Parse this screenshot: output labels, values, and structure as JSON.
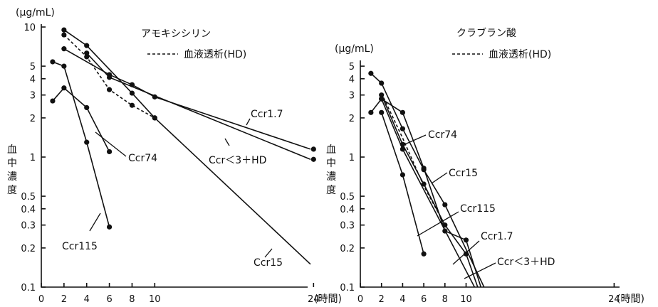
{
  "chart_data": [
    {
      "type": "line",
      "title": "アモキシシリン",
      "unit_label": "(μg/mL)",
      "ylabel_chars": [
        "血",
        "中",
        "濃",
        "度"
      ],
      "x_unit_label": "(時間)",
      "legend": [
        "血液透析(HD)"
      ],
      "y_scale": "log",
      "ylim": [
        0.1,
        10
      ],
      "xlim": [
        0,
        24
      ],
      "x_ticks": [
        0,
        2,
        4,
        6,
        8,
        10,
        24
      ],
      "y_ticks": [
        0.1,
        0.2,
        0.3,
        0.4,
        0.5,
        1,
        2,
        3,
        4,
        5,
        10
      ],
      "y_tick_labels": [
        "0.1",
        "0.2",
        "0.3",
        "0.4",
        "0.5",
        "1",
        "2",
        "3",
        "4",
        "5",
        "10"
      ],
      "series": [
        {
          "name": "Ccr1.7",
          "style": "solid",
          "x": [
            2,
            6,
            8,
            10,
            24
          ],
          "y": [
            6.8,
            4.3,
            3.6,
            2.9,
            1.15
          ],
          "markers": true
        },
        {
          "name": "Ccr＜3＋HD",
          "style": "solid",
          "x": [
            4,
            6,
            24
          ],
          "y": [
            6.3,
            4.1,
            0.96
          ],
          "markers": true
        },
        {
          "name": "Ccr15",
          "style": "solid",
          "x": [
            2,
            4,
            8,
            10,
            26.2
          ],
          "y": [
            9.5,
            7.2,
            3.1,
            2.0,
            0.15
          ],
          "markers_x": [
            2,
            4,
            8,
            10
          ]
        },
        {
          "name": "HD",
          "style": "dashed",
          "x": [
            2,
            4,
            6,
            8,
            10
          ],
          "y": [
            8.7,
            5.9,
            3.3,
            2.5,
            2.0
          ],
          "markers": true
        },
        {
          "name": "Ccr74",
          "style": "solid",
          "x": [
            1,
            2,
            4,
            6
          ],
          "y": [
            2.7,
            3.4,
            2.4,
            1.1
          ],
          "markers": true
        },
        {
          "name": "Ccr115",
          "style": "solid",
          "x": [
            1,
            2,
            4,
            6
          ],
          "y": [
            5.4,
            5.0,
            1.3,
            0.29
          ],
          "markers": true
        }
      ]
    },
    {
      "type": "line",
      "title": "クラブラン酸",
      "unit_label": "(μg/mL)",
      "ylabel_chars": [
        "血",
        "中",
        "濃",
        "度"
      ],
      "x_unit_label": "(時間)",
      "legend": [
        "血液透析(HD)"
      ],
      "y_scale": "log",
      "ylim": [
        0.1,
        5
      ],
      "xlim": [
        0,
        24
      ],
      "x_ticks": [
        0,
        2,
        4,
        6,
        8,
        10,
        24
      ],
      "y_ticks": [
        0.1,
        0.2,
        0.3,
        0.4,
        0.5,
        1,
        2,
        3,
        4,
        5
      ],
      "y_tick_labels": [
        "0.1",
        "0.2",
        "0.3",
        "0.4",
        "0.5",
        "1",
        "2",
        "3",
        "4",
        "5"
      ],
      "series": [
        {
          "name": "Ccr1.7",
          "style": "solid",
          "x": [
            1,
            2,
            4,
            6,
            8,
            11.7
          ],
          "y": [
            4.4,
            3.7,
            1.65,
            0.8,
            0.43,
            0.1
          ],
          "markers_x": [
            1,
            2,
            4,
            6,
            8
          ]
        },
        {
          "name": "Ccr15",
          "style": "solid",
          "x": [
            2,
            4,
            6,
            8,
            10,
            11.4
          ],
          "y": [
            2.8,
            2.2,
            0.82,
            0.27,
            0.23,
            0.1
          ],
          "markers_x": [
            2,
            4,
            6,
            8,
            10
          ]
        },
        {
          "name": "Ccr＜3＋HD",
          "style": "solid",
          "x": [
            2,
            4,
            6,
            8,
            10,
            11.1
          ],
          "y": [
            3.0,
            1.25,
            0.62,
            0.3,
            0.18,
            0.1
          ],
          "markers_x": [
            2,
            4,
            6,
            8,
            10
          ]
        },
        {
          "name": "Ccr74",
          "style": "solid",
          "x": [
            1,
            2,
            4,
            10.8
          ],
          "y": [
            2.2,
            2.8,
            1.15,
            0.1
          ],
          "markers_x": [
            1,
            2,
            4
          ]
        },
        {
          "name": "Ccr115",
          "style": "solid",
          "x": [
            2,
            4,
            6
          ],
          "y": [
            2.2,
            0.73,
            0.18
          ],
          "markers": true
        },
        {
          "name": "HD",
          "style": "dashed",
          "x": [
            2,
            4,
            6,
            8
          ],
          "y": [
            3.1,
            1.4,
            0.6,
            0.3
          ],
          "markers": false
        }
      ]
    }
  ]
}
